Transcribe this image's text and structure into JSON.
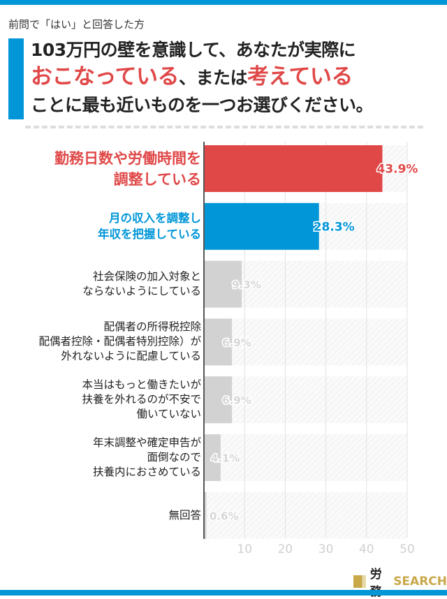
{
  "header": {
    "pre_label": "前問で「はい」と回答した方",
    "question_line1": "103万円の壁を意識して、あなたが実際に",
    "question_line2_red1": "おこなっている",
    "question_line2_mid": "、または",
    "question_line2_red2": "考えている",
    "question_line3": "ことに最も近いものを一つお選びください。"
  },
  "colors": {
    "accent_blue": "#0096d8",
    "accent_red": "#e04848",
    "bar_gray": "#d2d2d2",
    "axis_tick": "#d0d0d0"
  },
  "chart_data": {
    "type": "bar",
    "orientation": "horizontal",
    "categories": [
      [
        "勤務日数や労働時間を",
        "調整している"
      ],
      [
        "月の収入を調整し",
        "年収を把握している"
      ],
      [
        "社会保険の加入対象と",
        "ならないようにしている"
      ],
      [
        "配偶者の所得税控除",
        "配偶者控除・配偶者特別控除）が",
        "外れないように配慮している"
      ],
      [
        "本当はもっと働きたいが",
        "扶養を外れるのが不安で",
        "働いていない"
      ],
      [
        "年末調整や確定申告が",
        "面倒なので",
        "扶養内におさめている"
      ],
      [
        "無回答"
      ]
    ],
    "values": [
      43.9,
      28.3,
      9.3,
      6.9,
      6.9,
      4.1,
      0.6
    ],
    "data_labels": [
      "43.9%",
      "28.3%",
      "9.3%",
      "6.9%",
      "6.9%",
      "4.1%",
      "0.6%"
    ],
    "bar_colors": [
      "#e04848",
      "#0096d8",
      "#d2d2d2",
      "#d2d2d2",
      "#d2d2d2",
      "#d2d2d2",
      "#d2d2d2"
    ],
    "xlim": [
      0,
      50
    ],
    "xticks": [
      "10",
      "20",
      "30",
      "40",
      "50"
    ],
    "grid": true
  },
  "brand": {
    "logo_part1": "労務",
    "logo_part2": "SEARCH"
  }
}
